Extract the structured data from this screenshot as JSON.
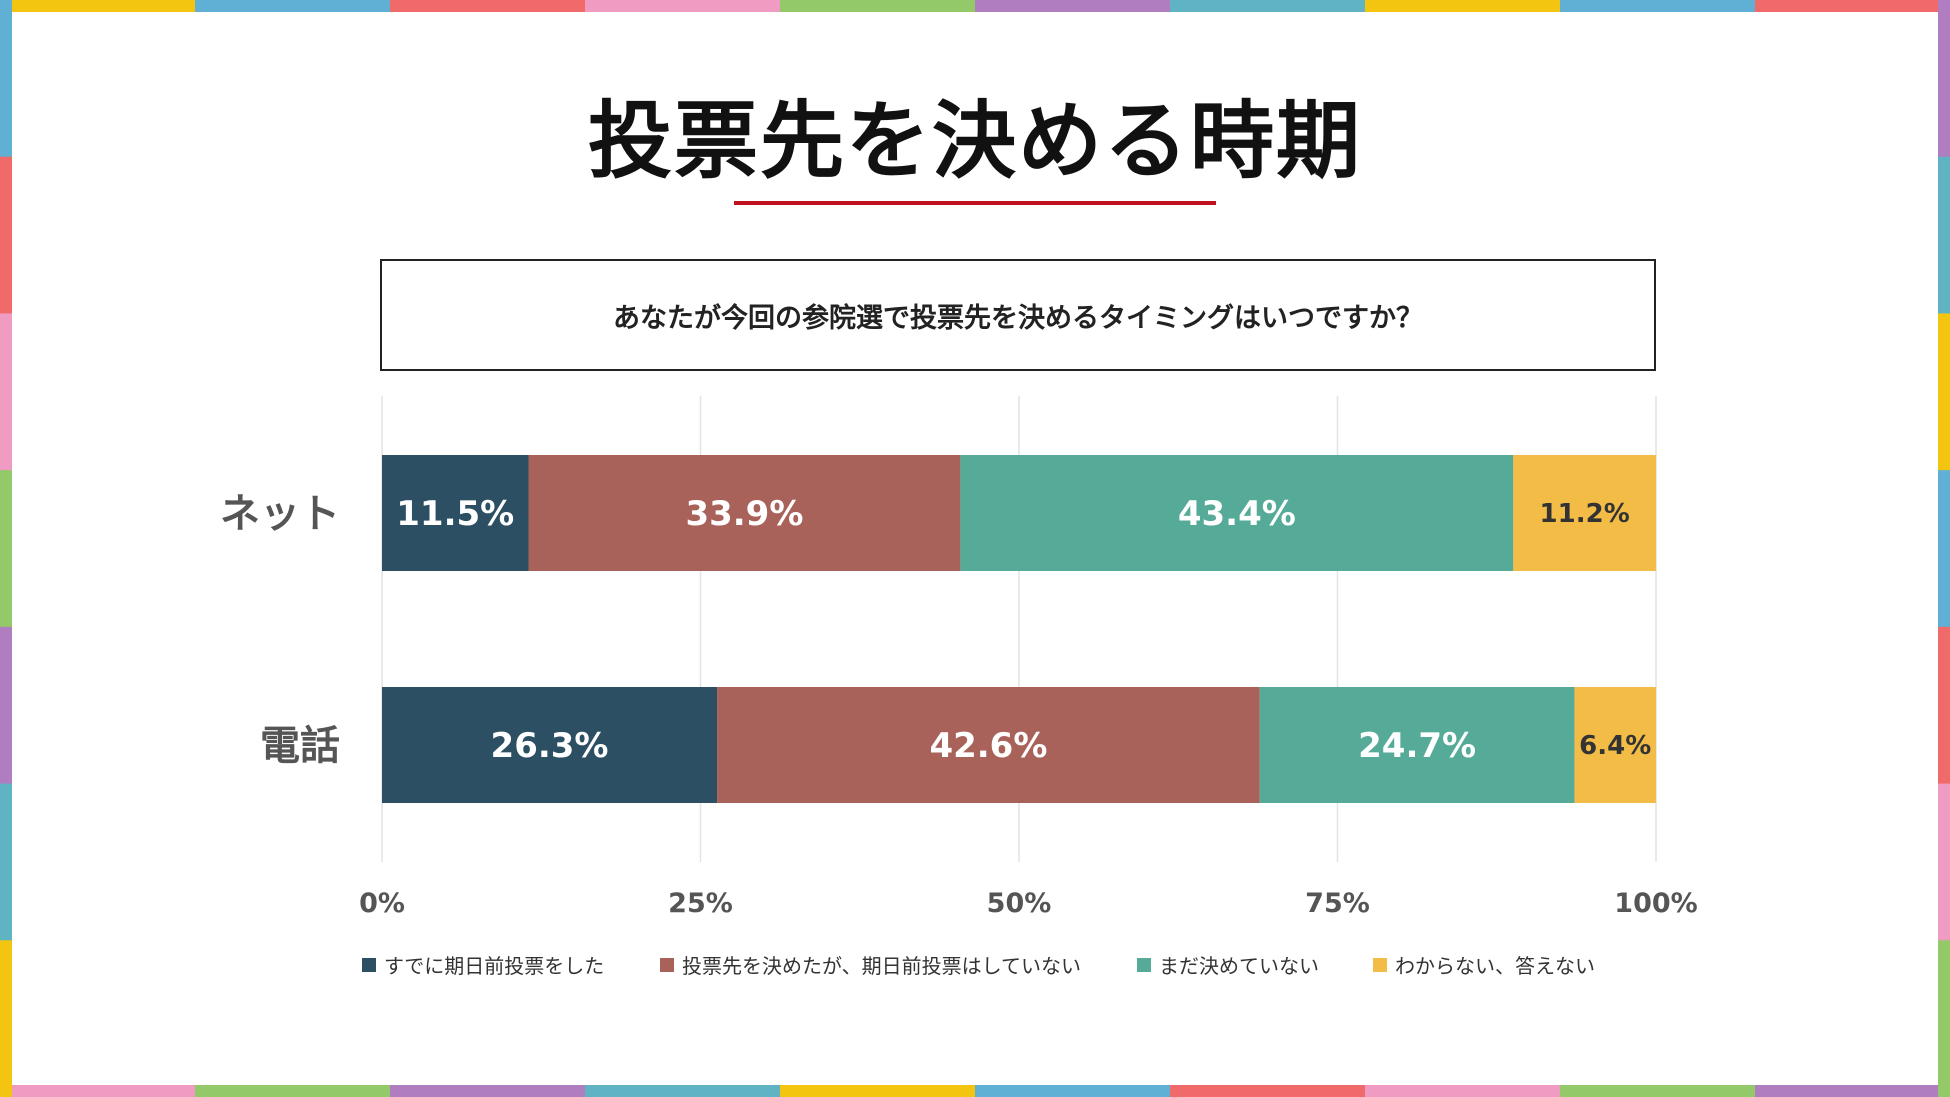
{
  "title": "投票先を決める時期",
  "question": "あなたが今回の参院選で投票先を決めるタイミングはいつですか？",
  "colors": {
    "series": [
      "#2c4f63",
      "#a8625a",
      "#55ab98",
      "#f2bc47"
    ],
    "underline": "#c0121e",
    "frame": [
      "#f4c510",
      "#60b0d6",
      "#f06a6a",
      "#f09cc2",
      "#94c96a",
      "#b07ec0",
      "#5fb3c3"
    ]
  },
  "chart_data": {
    "type": "bar",
    "orientation": "horizontal",
    "stacked": true,
    "categories": [
      "ネット",
      "電話"
    ],
    "series": [
      {
        "name": "すでに期日前投票をした",
        "values": [
          11.5,
          26.3
        ],
        "labels": [
          "11.5%",
          "26.3%"
        ]
      },
      {
        "name": "投票先を決めたが、期日前投票はしていない",
        "values": [
          33.9,
          42.6
        ],
        "labels": [
          "33.9%",
          "42.6%"
        ]
      },
      {
        "name": "まだ決めていない",
        "values": [
          43.4,
          24.7
        ],
        "labels": [
          "43.4%",
          "24.7%"
        ]
      },
      {
        "name": "わからない、答えない",
        "values": [
          11.2,
          6.4
        ],
        "labels": [
          "11.2%",
          "6.4%"
        ]
      }
    ],
    "xlim": [
      0,
      100
    ],
    "xticks": [
      "0%",
      "25%",
      "50%",
      "75%",
      "100%"
    ],
    "grid": true,
    "legend": "bottom"
  }
}
